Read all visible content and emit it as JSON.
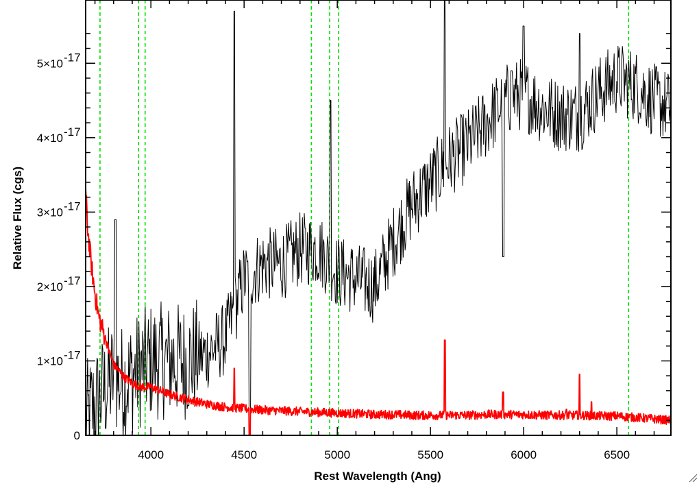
{
  "chart_data": {
    "type": "line",
    "title": "",
    "xlabel": "Rest Wavelength (Ang)",
    "ylabel": "Relative Flux (cgs)",
    "xlim": [
      3650,
      6790
    ],
    "ylim": [
      0,
      5.85e-17
    ],
    "x_ticks": [
      4000,
      4500,
      5000,
      5500,
      6000,
      6500
    ],
    "x_tick_labels": [
      "4000",
      "4500",
      "5000",
      "5500",
      "6000",
      "6500"
    ],
    "y_ticks": [
      0,
      1e-17,
      2e-17,
      3e-17,
      4e-17,
      5e-17
    ],
    "y_tick_labels": [
      {
        "mantissa": "0",
        "exponent": ""
      },
      {
        "mantissa": "1×10",
        "exponent": "-17"
      },
      {
        "mantissa": "2×10",
        "exponent": "-17"
      },
      {
        "mantissa": "3×10",
        "exponent": "-17"
      },
      {
        "mantissa": "4×10",
        "exponent": "-17"
      },
      {
        "mantissa": "5×10",
        "exponent": "-17"
      }
    ],
    "grid": false,
    "legend": "none",
    "reference_lines": {
      "color": "#00e000",
      "style": "dashed",
      "x": [
        3727,
        3934,
        3969,
        4861,
        4959,
        5007,
        6563
      ]
    },
    "series": [
      {
        "color": "#000000",
        "noise": 5e-18,
        "x": [
          3650,
          3700,
          3750,
          3800,
          3850,
          3900,
          3950,
          4000,
          4100,
          4200,
          4300,
          4400,
          4500,
          4600,
          4700,
          4800,
          4900,
          5000,
          5100,
          5200,
          5300,
          5400,
          5500,
          5600,
          5700,
          5800,
          5900,
          6000,
          6100,
          6200,
          6300,
          6400,
          6500,
          6600,
          6700,
          6790
        ],
        "y": [
          2e-18,
          4e-18,
          6e-18,
          8e-18,
          7e-18,
          8e-18,
          9e-18,
          1e-17,
          1e-17,
          1e-17,
          1.1e-17,
          1.3e-17,
          2.1e-17,
          2.3e-17,
          2.3e-17,
          2.5e-17,
          2.5e-17,
          2.2e-17,
          2.1e-17,
          2e-17,
          2.6e-17,
          3.1e-17,
          3.4e-17,
          3.7e-17,
          3.9e-17,
          4.2e-17,
          4.5e-17,
          4.6e-17,
          4.4e-17,
          4.3e-17,
          4.3e-17,
          4.6e-17,
          4.8e-17,
          4.7e-17,
          4.5e-17,
          4.4e-17
        ],
        "spikes": [
          {
            "x": 3810,
            "y": 2.9e-17
          },
          {
            "x": 4447,
            "y": 5.7e-17
          },
          {
            "x": 4530,
            "y": 0
          },
          {
            "x": 4965,
            "y": 4.5e-17
          },
          {
            "x": 5577,
            "y": 5.9e-17
          },
          {
            "x": 5890,
            "y": 2.4e-17
          },
          {
            "x": 5935,
            "y": 4.9e-17
          },
          {
            "x": 6000,
            "y": 5.5e-17
          },
          {
            "x": 6300,
            "y": 5.4e-17
          }
        ]
      },
      {
        "color": "#ff0000",
        "noise": 6e-19,
        "x": [
          3650,
          3660,
          3680,
          3700,
          3720,
          3750,
          3780,
          3800,
          3850,
          3900,
          3950,
          4000,
          4050,
          4100,
          4200,
          4300,
          4400,
          4500,
          4600,
          4700,
          4800,
          4900,
          5000,
          5100,
          5200,
          5300,
          5400,
          5500,
          5600,
          5700,
          5800,
          5900,
          6000,
          6100,
          6200,
          6300,
          6400,
          6500,
          6600,
          6700,
          6790
        ],
        "y": [
          3.3e-17,
          2.8e-17,
          2.3e-17,
          1.9e-17,
          1.6e-17,
          1.35e-17,
          1.1e-17,
          9.5e-18,
          8e-18,
          7e-18,
          6.5e-18,
          6.5e-18,
          6e-18,
          5.5e-18,
          4.8e-18,
          4.2e-18,
          3.8e-18,
          3.6e-18,
          3.4e-18,
          3.3e-18,
          3.2e-18,
          3.1e-18,
          3e-18,
          2.9e-18,
          2.8e-18,
          2.8e-18,
          2.7e-18,
          2.7e-18,
          2.7e-18,
          2.7e-18,
          2.8e-18,
          2.8e-18,
          2.8e-18,
          2.7e-18,
          2.7e-18,
          2.7e-18,
          2.6e-18,
          2.6e-18,
          2.4e-18,
          2.2e-18,
          2e-18
        ],
        "spikes": [
          {
            "x": 4447,
            "y": 9e-18
          },
          {
            "x": 4530,
            "y": -2e-18
          },
          {
            "x": 5577,
            "y": 1.28e-17
          },
          {
            "x": 5890,
            "y": 5.8e-18
          },
          {
            "x": 6300,
            "y": 8.2e-18
          },
          {
            "x": 6364,
            "y": 4.5e-18
          },
          {
            "x": 6230,
            "y": 3.5e-18
          }
        ]
      }
    ]
  }
}
